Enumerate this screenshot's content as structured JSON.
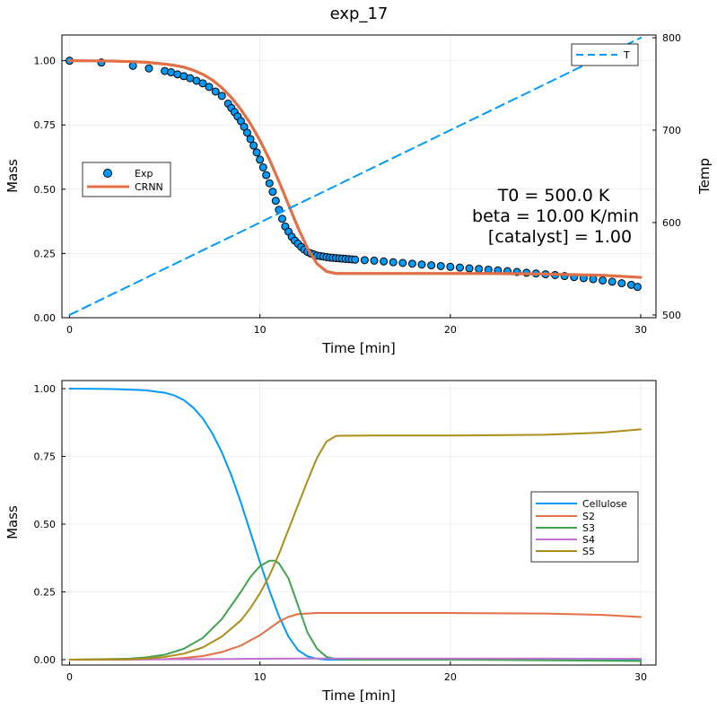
{
  "chart_data": [
    {
      "type": "scatter",
      "title": "exp_17",
      "xlabel": "Time [min]",
      "ylabel": "Mass",
      "y2label": "Temp",
      "xlim": [
        -0.4,
        30.8
      ],
      "ylim": [
        0,
        1.1
      ],
      "y2lim": [
        497,
        803
      ],
      "xticks": [
        "0",
        "10",
        "20",
        "30"
      ],
      "yticks": [
        "0.00",
        "0.25",
        "0.50",
        "0.75",
        "1.00"
      ],
      "y2ticks": [
        "500",
        "600",
        "700",
        "800"
      ],
      "grid": true,
      "legend_left": "middle-left",
      "legend_right": "top-right",
      "annotation": [
        "T0 = 500.0 K",
        "beta = 10.00 K/min",
        "[catalyst] = 1.00"
      ],
      "series": [
        {
          "name": "Exp",
          "kind": "scatter",
          "color": "#009AFA",
          "x": [
            0,
            1.67,
            3.33,
            4.17,
            5.0,
            5.33,
            5.67,
            6.0,
            6.33,
            6.67,
            7.0,
            7.33,
            7.67,
            8.0,
            8.33,
            8.5,
            8.67,
            8.83,
            9.0,
            9.17,
            9.33,
            9.5,
            9.67,
            9.83,
            10.0,
            10.17,
            10.33,
            10.5,
            10.67,
            10.83,
            11.0,
            11.17,
            11.33,
            11.5,
            11.67,
            11.83,
            12.0,
            12.17,
            12.33,
            12.5,
            12.67,
            12.83,
            13.0,
            13.17,
            13.33,
            13.5,
            13.67,
            13.83,
            14.0,
            14.17,
            14.33,
            14.5,
            14.67,
            14.83,
            15.0,
            15.5,
            16.0,
            16.5,
            17.0,
            17.5,
            18.0,
            18.5,
            19.0,
            19.5,
            20.0,
            20.5,
            21.0,
            21.5,
            22.0,
            22.5,
            23.0,
            23.5,
            24.0,
            24.5,
            25.0,
            25.5,
            26.0,
            26.5,
            27.0,
            27.5,
            28.0,
            28.5,
            29.0,
            29.5,
            29.83
          ],
          "y": [
            1.0,
            0.993,
            0.98,
            0.97,
            0.96,
            0.955,
            0.947,
            0.94,
            0.932,
            0.922,
            0.912,
            0.898,
            0.88,
            0.863,
            0.833,
            0.816,
            0.8,
            0.783,
            0.765,
            0.743,
            0.72,
            0.695,
            0.67,
            0.643,
            0.615,
            0.585,
            0.555,
            0.523,
            0.49,
            0.455,
            0.42,
            0.385,
            0.355,
            0.335,
            0.315,
            0.3,
            0.288,
            0.275,
            0.265,
            0.256,
            0.25,
            0.246,
            0.242,
            0.24,
            0.238,
            0.236,
            0.234,
            0.233,
            0.232,
            0.231,
            0.23,
            0.229,
            0.228,
            0.227,
            0.226,
            0.224,
            0.222,
            0.219,
            0.216,
            0.213,
            0.21,
            0.207,
            0.204,
            0.201,
            0.198,
            0.195,
            0.192,
            0.19,
            0.187,
            0.184,
            0.181,
            0.178,
            0.175,
            0.172,
            0.169,
            0.166,
            0.162,
            0.158,
            0.154,
            0.15,
            0.145,
            0.14,
            0.134,
            0.128,
            0.12
          ]
        },
        {
          "name": "CRNN",
          "kind": "line",
          "color": "#E26F46",
          "x": [
            0,
            2,
            3,
            4,
            5,
            5.5,
            6,
            6.5,
            7,
            7.5,
            8,
            8.5,
            9,
            9.5,
            10,
            10.5,
            11,
            11.5,
            12,
            12.5,
            13,
            13.5,
            14,
            15,
            18,
            22,
            25,
            28,
            30
          ],
          "y": [
            1.0,
            0.999,
            0.997,
            0.994,
            0.987,
            0.982,
            0.975,
            0.963,
            0.947,
            0.925,
            0.895,
            0.857,
            0.81,
            0.755,
            0.69,
            0.615,
            0.53,
            0.44,
            0.35,
            0.27,
            0.21,
            0.18,
            0.172,
            0.172,
            0.172,
            0.172,
            0.17,
            0.165,
            0.157
          ]
        },
        {
          "name": "T",
          "kind": "line",
          "axis": "right",
          "dash": true,
          "color": "#009AFA",
          "x": [
            0,
            30
          ],
          "y": [
            500,
            800
          ]
        }
      ]
    },
    {
      "type": "line",
      "xlabel": "Time [min]",
      "ylabel": "Mass",
      "xlim": [
        -0.4,
        30.8
      ],
      "ylim": [
        -0.02,
        1.03
      ],
      "xticks": [
        "0",
        "10",
        "20",
        "30"
      ],
      "yticks": [
        "0.00",
        "0.25",
        "0.50",
        "0.75",
        "1.00"
      ],
      "grid": true,
      "legend": "right",
      "series": [
        {
          "name": "Cellulose",
          "color": "#009AFA",
          "x": [
            0,
            2,
            3,
            4,
            5,
            5.5,
            6,
            6.5,
            7,
            7.5,
            8,
            8.5,
            9,
            9.5,
            10,
            10.5,
            11,
            11.5,
            12,
            12.5,
            13,
            13.5,
            14,
            15,
            20,
            25,
            30
          ],
          "y": [
            1.0,
            0.999,
            0.997,
            0.994,
            0.985,
            0.975,
            0.958,
            0.93,
            0.89,
            0.835,
            0.765,
            0.68,
            0.58,
            0.47,
            0.36,
            0.255,
            0.16,
            0.085,
            0.035,
            0.012,
            0.003,
            0.0,
            0.0,
            0.0,
            0.0,
            0.0,
            0.0
          ]
        },
        {
          "name": "S2",
          "color": "#E26F46",
          "x": [
            0,
            3,
            5,
            6,
            7,
            8,
            9,
            10,
            10.5,
            11,
            11.5,
            12,
            13,
            14,
            16,
            20,
            25,
            28,
            30
          ],
          "y": [
            0.0,
            0.0,
            0.002,
            0.006,
            0.013,
            0.028,
            0.052,
            0.09,
            0.115,
            0.14,
            0.158,
            0.168,
            0.172,
            0.172,
            0.172,
            0.172,
            0.17,
            0.165,
            0.157
          ]
        },
        {
          "name": "S3",
          "color": "#3EA44E",
          "x": [
            0,
            3,
            4,
            5,
            6,
            7,
            8,
            9,
            9.5,
            10,
            10.5,
            10.8,
            11,
            11.5,
            12,
            12.5,
            13,
            13.5,
            14,
            15,
            20,
            30
          ],
          "y": [
            0.0,
            0.003,
            0.008,
            0.018,
            0.04,
            0.08,
            0.15,
            0.25,
            0.305,
            0.345,
            0.365,
            0.365,
            0.355,
            0.3,
            0.2,
            0.1,
            0.04,
            0.01,
            0.002,
            0.0,
            0.0,
            -0.005
          ]
        },
        {
          "name": "S4",
          "color": "#C271D2",
          "x": [
            0,
            5,
            10,
            12,
            15,
            20,
            25,
            30
          ],
          "y": [
            0.0,
            0.001,
            0.003,
            0.004,
            0.004,
            0.004,
            0.004,
            0.003
          ]
        },
        {
          "name": "S5",
          "color": "#AC8E18",
          "x": [
            0,
            3,
            4,
            5,
            6,
            7,
            8,
            9,
            9.5,
            10,
            10.5,
            11,
            11.5,
            12,
            12.5,
            13,
            13.5,
            14,
            16,
            20,
            25,
            28,
            30
          ],
          "y": [
            0.0,
            0.001,
            0.004,
            0.01,
            0.022,
            0.045,
            0.085,
            0.145,
            0.19,
            0.245,
            0.31,
            0.39,
            0.48,
            0.57,
            0.66,
            0.745,
            0.805,
            0.826,
            0.827,
            0.827,
            0.83,
            0.838,
            0.85
          ]
        }
      ]
    }
  ]
}
